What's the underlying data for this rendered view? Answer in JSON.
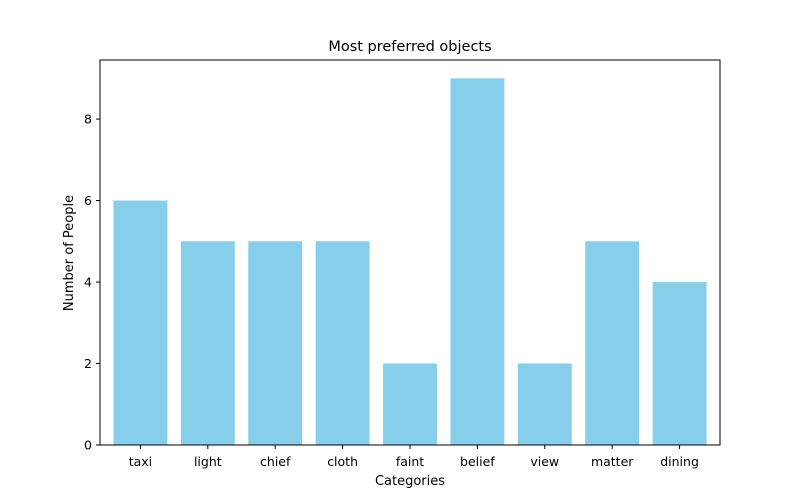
{
  "chart_data": {
    "type": "bar",
    "title": "Most preferred objects",
    "xlabel": "Categories",
    "ylabel": "Number of People",
    "categories": [
      "taxi",
      "light",
      "chief",
      "cloth",
      "faint",
      "belief",
      "view",
      "matter",
      "dining"
    ],
    "values": [
      6,
      5,
      5,
      5,
      2,
      9,
      2,
      5,
      4
    ],
    "ylim": [
      0,
      9.45
    ],
    "yticks": [
      0,
      2,
      4,
      6,
      8
    ],
    "bar_color": "#87ceeb",
    "grid": false,
    "legend": "none"
  }
}
